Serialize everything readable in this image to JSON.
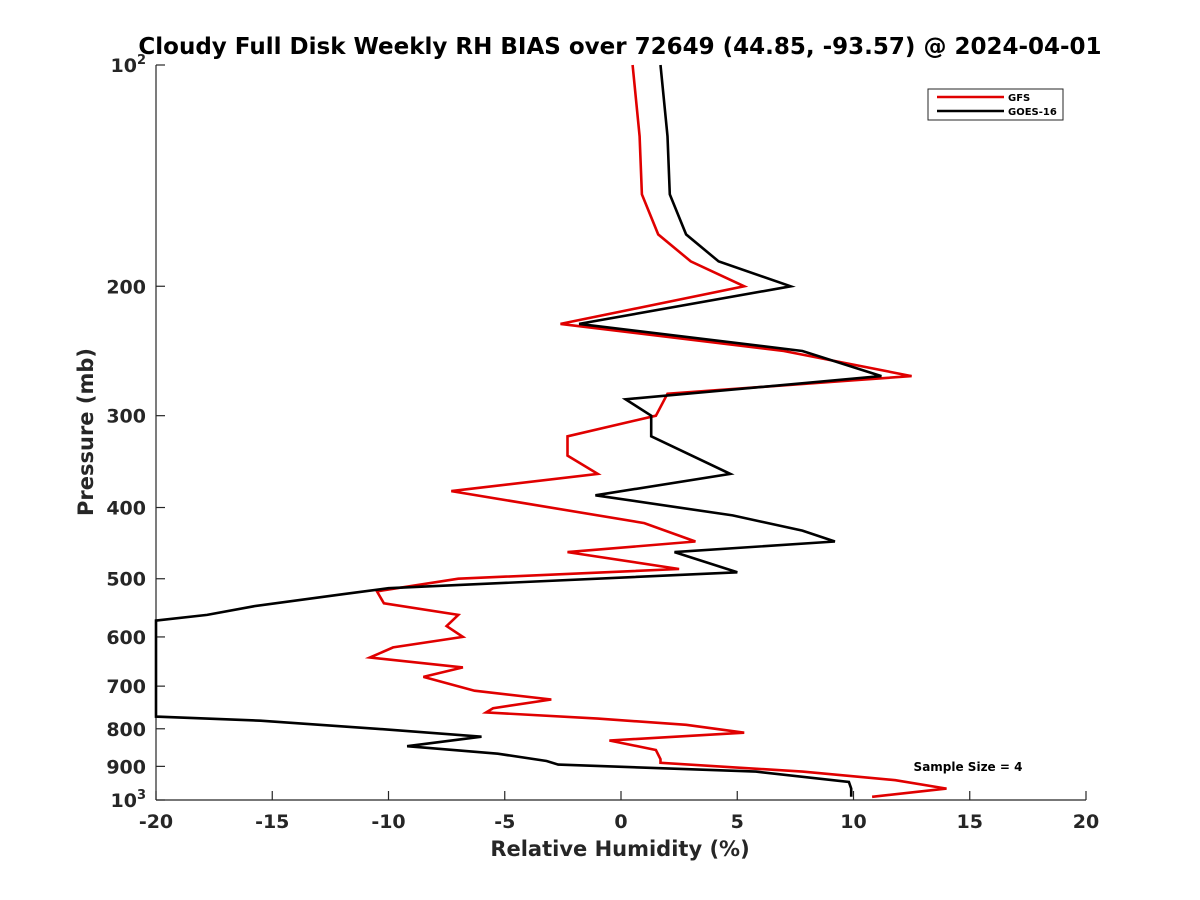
{
  "chart_data": {
    "type": "line",
    "title": "Cloudy Full Disk Weekly RH BIAS over 72649 (44.85, -93.57) @ 2024-04-01",
    "xlabel": "Relative Humidity (%)",
    "ylabel": "Pressure (mb)",
    "xlim": [
      -20,
      20
    ],
    "ylim": [
      100,
      1000
    ],
    "yscale": "log",
    "y_reversed": true,
    "grid": false,
    "legend_position": "top-right",
    "x_ticks": [
      -20,
      -15,
      -10,
      -5,
      0,
      5,
      10,
      15,
      20
    ],
    "x_tick_labels": [
      "-20",
      "-15",
      "-10",
      "-5",
      "0",
      "5",
      "10",
      "15",
      "20"
    ],
    "y_ticks": [
      {
        "value": 100,
        "base": "10",
        "sup": "2"
      },
      {
        "value": 200,
        "base": "200",
        "sup": ""
      },
      {
        "value": 300,
        "base": "300",
        "sup": ""
      },
      {
        "value": 400,
        "base": "400",
        "sup": ""
      },
      {
        "value": 500,
        "base": "500",
        "sup": ""
      },
      {
        "value": 600,
        "base": "600",
        "sup": ""
      },
      {
        "value": 700,
        "base": "700",
        "sup": ""
      },
      {
        "value": 800,
        "base": "800",
        "sup": ""
      },
      {
        "value": 900,
        "base": "900",
        "sup": ""
      },
      {
        "value": 1000,
        "base": "10",
        "sup": "3"
      }
    ],
    "series": [
      {
        "name": "GFS",
        "color": "#e00000",
        "points": [
          [
            0.5,
            100
          ],
          [
            0.8,
            125
          ],
          [
            0.9,
            150
          ],
          [
            1.6,
            170
          ],
          [
            3.0,
            185
          ],
          [
            5.3,
            200
          ],
          [
            -2.6,
            225
          ],
          [
            7.0,
            245
          ],
          [
            12.5,
            265
          ],
          [
            2.0,
            280
          ],
          [
            1.5,
            300
          ],
          [
            -2.3,
            320
          ],
          [
            -2.3,
            340
          ],
          [
            -1.0,
            360
          ],
          [
            -7.3,
            380
          ],
          [
            1.0,
            420
          ],
          [
            3.2,
            445
          ],
          [
            -2.3,
            460
          ],
          [
            2.5,
            485
          ],
          [
            -7.0,
            500
          ],
          [
            -10.5,
            520
          ],
          [
            -10.2,
            540
          ],
          [
            -7.0,
            560
          ],
          [
            -7.5,
            580
          ],
          [
            -6.8,
            600
          ],
          [
            -9.8,
            620
          ],
          [
            -10.8,
            640
          ],
          [
            -6.8,
            660
          ],
          [
            -8.5,
            680
          ],
          [
            -6.3,
            710
          ],
          [
            -3.0,
            730
          ],
          [
            -5.5,
            750
          ],
          [
            -5.8,
            760
          ],
          [
            -1.0,
            775
          ],
          [
            2.8,
            790
          ],
          [
            5.3,
            810
          ],
          [
            -0.5,
            830
          ],
          [
            1.5,
            855
          ],
          [
            1.7,
            880
          ],
          [
            1.7,
            890
          ],
          [
            7.8,
            915
          ],
          [
            11.8,
            940
          ],
          [
            14.0,
            965
          ],
          [
            10.8,
            990
          ]
        ]
      },
      {
        "name": "GOES-16",
        "color": "#000000",
        "points": [
          [
            1.7,
            100
          ],
          [
            2.0,
            125
          ],
          [
            2.1,
            150
          ],
          [
            2.8,
            170
          ],
          [
            4.2,
            185
          ],
          [
            7.3,
            200
          ],
          [
            -1.8,
            225
          ],
          [
            7.8,
            245
          ],
          [
            11.2,
            265
          ],
          [
            0.2,
            285
          ],
          [
            1.3,
            300
          ],
          [
            1.3,
            320
          ],
          [
            4.7,
            360
          ],
          [
            -1.1,
            385
          ],
          [
            4.8,
            410
          ],
          [
            7.8,
            430
          ],
          [
            9.2,
            445
          ],
          [
            2.3,
            460
          ],
          [
            5.0,
            490
          ],
          [
            -10.0,
            515
          ],
          [
            -12.0,
            525
          ],
          [
            -15.8,
            545
          ],
          [
            -17.8,
            560
          ],
          [
            -20.0,
            570
          ],
          [
            -20.0,
            770
          ],
          [
            -15.5,
            780
          ],
          [
            -10.5,
            800
          ],
          [
            -6.0,
            820
          ],
          [
            -9.2,
            845
          ],
          [
            -5.3,
            865
          ],
          [
            -3.2,
            885
          ],
          [
            -2.7,
            895
          ],
          [
            5.8,
            915
          ],
          [
            9.8,
            945
          ],
          [
            9.9,
            965
          ],
          [
            9.9,
            990
          ]
        ]
      }
    ],
    "annotation": "Sample Size = 4"
  }
}
